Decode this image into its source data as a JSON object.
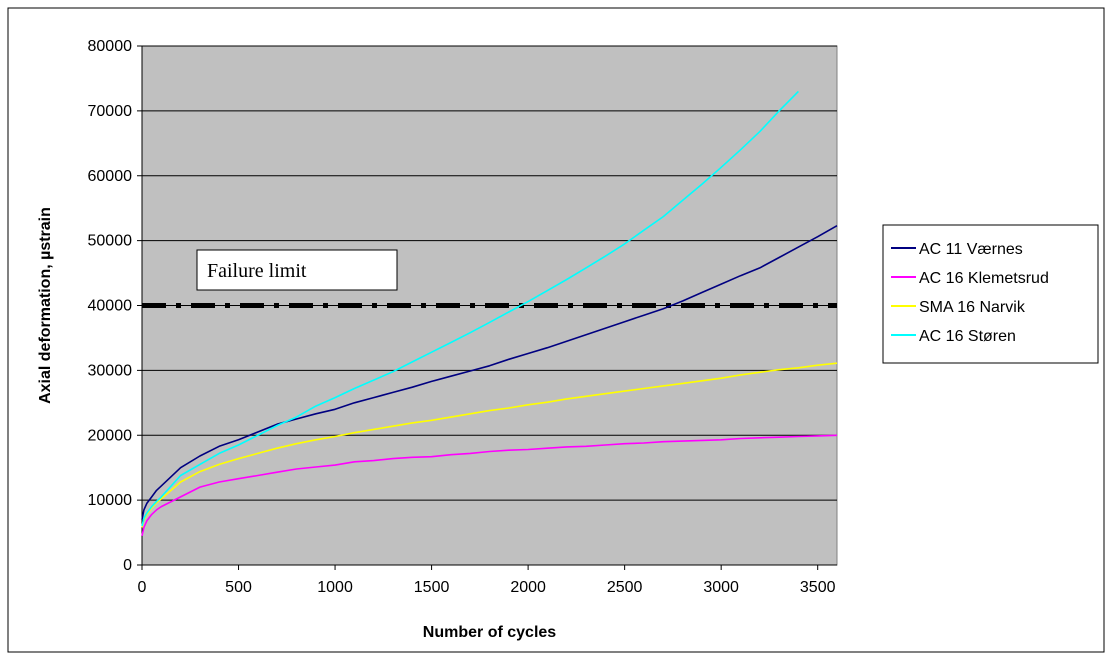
{
  "chart_data": {
    "type": "line",
    "xlabel": "Number of cycles",
    "ylabel": "Axial deformation, µstrain",
    "xlim": [
      0,
      3600
    ],
    "ylim": [
      0,
      80000
    ],
    "x_ticks": [
      0,
      500,
      1000,
      1500,
      2000,
      2500,
      3000,
      3500
    ],
    "y_ticks": [
      0,
      10000,
      20000,
      30000,
      40000,
      50000,
      60000,
      70000,
      80000
    ],
    "grid": "horizontal",
    "plot_background": "#c0c0c0",
    "legend_placement": "right",
    "annotation": {
      "label": "Failure limit",
      "y": 40000,
      "style": "dash-dot",
      "color": "#000000"
    },
    "series": [
      {
        "name": "AC 11 Værnes",
        "color": "#000080",
        "points": [
          [
            0,
            7000
          ],
          [
            10,
            8500
          ],
          [
            25,
            9500
          ],
          [
            50,
            10500
          ],
          [
            75,
            11500
          ],
          [
            100,
            12200
          ],
          [
            200,
            15000
          ],
          [
            300,
            16800
          ],
          [
            400,
            18300
          ],
          [
            500,
            19300
          ],
          [
            600,
            20500
          ],
          [
            700,
            21700
          ],
          [
            800,
            22500
          ],
          [
            900,
            23300
          ],
          [
            1000,
            24000
          ],
          [
            1100,
            25000
          ],
          [
            1200,
            25800
          ],
          [
            1300,
            26600
          ],
          [
            1400,
            27400
          ],
          [
            1500,
            28300
          ],
          [
            1600,
            29100
          ],
          [
            1700,
            29900
          ],
          [
            1800,
            30700
          ],
          [
            1900,
            31700
          ],
          [
            2000,
            32600
          ],
          [
            2100,
            33500
          ],
          [
            2200,
            34500
          ],
          [
            2300,
            35500
          ],
          [
            2400,
            36500
          ],
          [
            2500,
            37500
          ],
          [
            2600,
            38500
          ],
          [
            2700,
            39500
          ],
          [
            2800,
            40700
          ],
          [
            2900,
            42000
          ],
          [
            3000,
            43300
          ],
          [
            3100,
            44600
          ],
          [
            3200,
            45800
          ],
          [
            3300,
            47400
          ],
          [
            3400,
            49000
          ],
          [
            3500,
            50600
          ],
          [
            3600,
            52300
          ]
        ]
      },
      {
        "name": "AC 16 Klemetsrud",
        "color": "#ff00ff",
        "points": [
          [
            0,
            4500
          ],
          [
            10,
            5800
          ],
          [
            25,
            6800
          ],
          [
            50,
            7800
          ],
          [
            75,
            8500
          ],
          [
            100,
            9000
          ],
          [
            200,
            10500
          ],
          [
            300,
            12000
          ],
          [
            400,
            12800
          ],
          [
            500,
            13300
          ],
          [
            600,
            13800
          ],
          [
            700,
            14300
          ],
          [
            800,
            14800
          ],
          [
            900,
            15100
          ],
          [
            1000,
            15400
          ],
          [
            1100,
            15900
          ],
          [
            1200,
            16100
          ],
          [
            1300,
            16400
          ],
          [
            1400,
            16600
          ],
          [
            1500,
            16700
          ],
          [
            1600,
            17000
          ],
          [
            1700,
            17200
          ],
          [
            1800,
            17500
          ],
          [
            1900,
            17700
          ],
          [
            2000,
            17800
          ],
          [
            2100,
            18000
          ],
          [
            2200,
            18200
          ],
          [
            2300,
            18300
          ],
          [
            2400,
            18500
          ],
          [
            2500,
            18700
          ],
          [
            2600,
            18800
          ],
          [
            2700,
            19000
          ],
          [
            2800,
            19100
          ],
          [
            2900,
            19200
          ],
          [
            3000,
            19300
          ],
          [
            3100,
            19500
          ],
          [
            3200,
            19600
          ],
          [
            3300,
            19700
          ],
          [
            3400,
            19800
          ],
          [
            3500,
            19900
          ],
          [
            3600,
            20000
          ]
        ]
      },
      {
        "name": "SMA 16 Narvik",
        "color": "#ffff00",
        "points": [
          [
            0,
            5800
          ],
          [
            10,
            7000
          ],
          [
            25,
            7800
          ],
          [
            50,
            8800
          ],
          [
            75,
            9600
          ],
          [
            100,
            10200
          ],
          [
            200,
            12800
          ],
          [
            300,
            14400
          ],
          [
            400,
            15500
          ],
          [
            500,
            16400
          ],
          [
            600,
            17200
          ],
          [
            700,
            18000
          ],
          [
            800,
            18700
          ],
          [
            900,
            19300
          ],
          [
            1000,
            19800
          ],
          [
            1100,
            20400
          ],
          [
            1200,
            20900
          ],
          [
            1300,
            21400
          ],
          [
            1400,
            21900
          ],
          [
            1500,
            22300
          ],
          [
            1600,
            22800
          ],
          [
            1700,
            23300
          ],
          [
            1800,
            23800
          ],
          [
            1900,
            24200
          ],
          [
            2000,
            24700
          ],
          [
            2100,
            25100
          ],
          [
            2200,
            25600
          ],
          [
            2300,
            26000
          ],
          [
            2400,
            26400
          ],
          [
            2500,
            26800
          ],
          [
            2600,
            27200
          ],
          [
            2700,
            27600
          ],
          [
            2800,
            28000
          ],
          [
            2900,
            28400
          ],
          [
            3000,
            28800
          ],
          [
            3100,
            29300
          ],
          [
            3200,
            29700
          ],
          [
            3300,
            30100
          ],
          [
            3400,
            30400
          ],
          [
            3500,
            30800
          ],
          [
            3600,
            31100
          ]
        ]
      },
      {
        "name": "AC 16 Støren",
        "color": "#00ffff",
        "points": [
          [
            0,
            6000
          ],
          [
            10,
            7200
          ],
          [
            25,
            8000
          ],
          [
            50,
            9000
          ],
          [
            75,
            9800
          ],
          [
            100,
            10500
          ],
          [
            200,
            13800
          ],
          [
            300,
            15500
          ],
          [
            400,
            17200
          ],
          [
            500,
            18500
          ],
          [
            600,
            20000
          ],
          [
            700,
            21500
          ],
          [
            800,
            22800
          ],
          [
            900,
            24500
          ],
          [
            1000,
            25800
          ],
          [
            1100,
            27200
          ],
          [
            1200,
            28500
          ],
          [
            1300,
            29800
          ],
          [
            1400,
            31300
          ],
          [
            1500,
            32800
          ],
          [
            1600,
            34300
          ],
          [
            1700,
            35800
          ],
          [
            1800,
            37400
          ],
          [
            1900,
            39000
          ],
          [
            2000,
            40600
          ],
          [
            2100,
            42300
          ],
          [
            2200,
            44000
          ],
          [
            2300,
            45800
          ],
          [
            2400,
            47600
          ],
          [
            2500,
            49500
          ],
          [
            2600,
            51600
          ],
          [
            2700,
            53700
          ],
          [
            2800,
            56200
          ],
          [
            2900,
            58700
          ],
          [
            3000,
            61300
          ],
          [
            3100,
            64000
          ],
          [
            3200,
            66800
          ],
          [
            3300,
            70000
          ],
          [
            3400,
            73000
          ]
        ]
      }
    ]
  }
}
